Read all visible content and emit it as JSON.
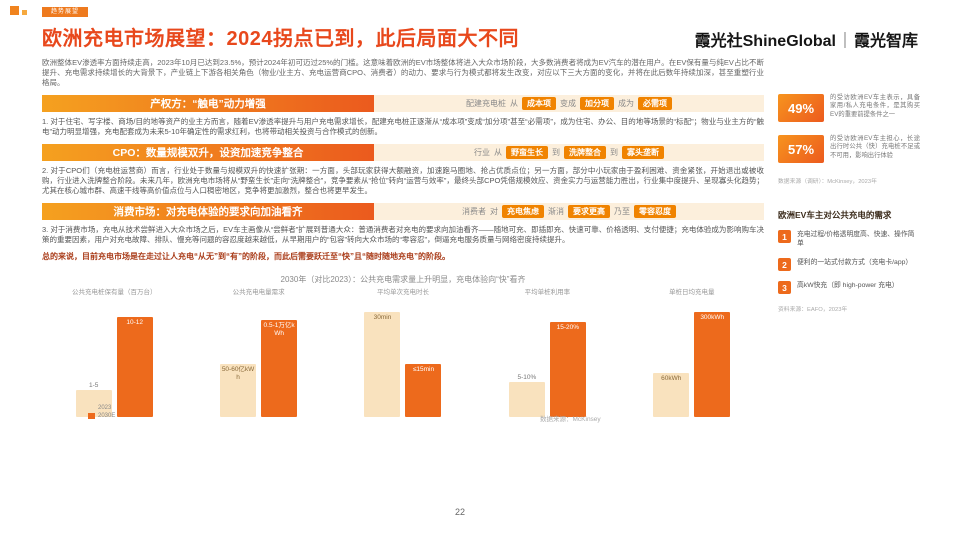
{
  "header": {
    "tag": "趋势展望",
    "title": "欧洲充电市场展望：2024拐点已到，此后局面大不同",
    "brand_cn": "霞光社",
    "brand_en": "ShineGlobal",
    "brand_sep": "｜",
    "brand_sub": "霞光智库"
  },
  "intro": "欧洲整体EV渗透率方面持续走高，2023年10月已达到23.5%，预计2024年初可迈过25%的门槛。这意味着欧洲的EV市场整体将进入大众市场阶段，大多数消费者将成为EV汽车的潜在用户。在EV保有量与纯EV占比不断提升、充电需求持续增长的大背景下，产业链上下游各相关角色（物业/业主方、充电运营商CPO、消费者）的动力、要求与行为模式都将发生改变，对应以下三大方面的变化，并将在此后数年持续加深，甚至重塑行业格局。",
  "sections": [
    {
      "banner": "产权方：“触电”动力增强",
      "tokens": [
        {
          "t": "配建充电桩",
          "chip": false
        },
        {
          "t": "从",
          "chip": false
        },
        {
          "t": "成本项",
          "chip": true
        },
        {
          "t": "变成",
          "chip": false
        },
        {
          "t": "加分项",
          "chip": true
        },
        {
          "t": "成为",
          "chip": false
        },
        {
          "t": "必需项",
          "chip": true
        }
      ],
      "body": "1. 对于住宅、写字楼、商场/目的地等资产的业主方而言，随着EV渗透率提升与用户充电需求增长，配建充电桩正逐渐从“成本项”变成“加分项”甚至“必需项”，成为住宅、办公、目的地等场景的“标配”；物业与业主方的“触电”动力明显增强，充电配套成为未来5-10年确定性的需求红利，也将带动相关投资与合作模式的创新。"
    },
    {
      "banner": "CPO：数量规模双升，设资加速竞争整合",
      "tokens": [
        {
          "t": "行业",
          "chip": false
        },
        {
          "t": "从",
          "chip": false
        },
        {
          "t": "野蛮生长",
          "chip": true
        },
        {
          "t": "到",
          "chip": false
        },
        {
          "t": "洗牌整合",
          "chip": true
        },
        {
          "t": "到",
          "chip": false
        },
        {
          "t": "寡头垄断",
          "chip": true
        }
      ],
      "body": "2. 对于CPO们（充电桩运营商）而言，行业处于数量与规模双升的快速扩张期：一方面，头部玩家获得大额融资，加速跑马圈地、抢占优质点位；另一方面，部分中小玩家由于盈利困难、资金紧张，开始退出或被收购，行业进入洗牌整合阶段。未来几年，欧洲充电市场将从“野蛮生长”走向“洗牌整合”，竞争要素从“抢位”转向“运营与效率”，最终头部CPO凭借规模效应、资金实力与运营能力胜出，行业集中度提升、呈现寡头化趋势；尤其在核心城市群、高速干线等高价值点位与人口稠密地区，竞争将更加激烈，整合也将更早发生。"
    },
    {
      "banner": "消费市场：对充电体验的要求向加油看齐",
      "tokens": [
        {
          "t": "消费者",
          "chip": false
        },
        {
          "t": "对",
          "chip": false
        },
        {
          "t": "充电焦虑",
          "chip": true
        },
        {
          "t": "渐消",
          "chip": false
        },
        {
          "t": "要求更高",
          "chip": true
        },
        {
          "t": "乃至",
          "chip": false
        },
        {
          "t": "零容忍度",
          "chip": true
        }
      ],
      "body": "3. 对于消费市场，充电从技术尝鲜进入大众市场之后，EV车主画像从“尝鲜者”扩展到普通大众：普通消费者对充电的要求向加油看齐——随地可充、即插即充、快速可靠、价格透明、支付便捷；充电体验成为影响购车决策的重要因素，用户对充电故障、排队、慢充等问题的容忍度越来越低，从早期用户的“包容”转向大众市场的“零容忍”，倒逼充电服务质量与网络密度持续提升。"
    }
  ],
  "summary": "总的来说，目前充电市场是在走过让人充电“从无”到“有”的阶段，而此后需要跃迁至“快”且“随时随地充电”的阶段。",
  "sidebar": {
    "stats": [
      {
        "value": "49%",
        "desc": "的受访欧洲EV车主表示，具备家用/私人充电条件，是其购买EV的重要前提条件之一"
      },
      {
        "value": "57%",
        "desc": "的受访欧洲EV车主担心，长途出行时公共（快）充电桩不足或不可用，影响出行体验"
      }
    ],
    "stats_source": "数据来源（调研）：McKinsey，2023年",
    "needs_title": "欧洲EV车主对公共充电的需求",
    "needs": [
      {
        "num": "1",
        "text": "充电过程/价格透明度高、快速、操作简单"
      },
      {
        "num": "2",
        "text": "便利的一站式付款方式（充电卡/app）"
      },
      {
        "num": "3",
        "text": "高kW快充（即 high-power 充电）"
      }
    ],
    "needs_source": "资料来源：EAFO，2023年"
  },
  "chart_data": {
    "type": "bar",
    "title": "2030年（对比2023）：公共充电需求量上升明显，充电体验向“快”看齐",
    "legend": [
      "2023",
      "2030E"
    ],
    "colors": {
      "2023": "#F9E2BE",
      "2030E": "#ED6A1C"
    },
    "source": "数据来源：McKinsey",
    "groups": [
      {
        "label": "公共充电桩保有量（百万台）",
        "bars": [
          {
            "v": "1-5",
            "h": 0.26,
            "pos": "above"
          },
          {
            "v": "10-12",
            "h": 0.95,
            "pos": "in"
          }
        ]
      },
      {
        "label": "公共充电电量需求",
        "bars": [
          {
            "v": "50-60亿kWh",
            "h": 0.5,
            "pos": "in"
          },
          {
            "v": "0.5-1万亿kWh",
            "h": 0.92,
            "pos": "in"
          }
        ]
      },
      {
        "label": "平均单次充电时长",
        "bars": [
          {
            "v": "30min",
            "h": 1.0,
            "pos": "in"
          },
          {
            "v": "≤15min",
            "h": 0.5,
            "pos": "in"
          }
        ]
      },
      {
        "label": "平均单桩利用率",
        "bars": [
          {
            "v": "5-10%",
            "h": 0.33,
            "pos": "above"
          },
          {
            "v": "15-20%",
            "h": 0.9,
            "pos": "in"
          }
        ]
      },
      {
        "label": "单桩日均充电量",
        "bars": [
          {
            "v": "60kWh",
            "h": 0.42,
            "pos": "in"
          },
          {
            "v": "300kWh",
            "h": 1.0,
            "pos": "in"
          }
        ]
      }
    ]
  },
  "page": {
    "number": "22"
  }
}
